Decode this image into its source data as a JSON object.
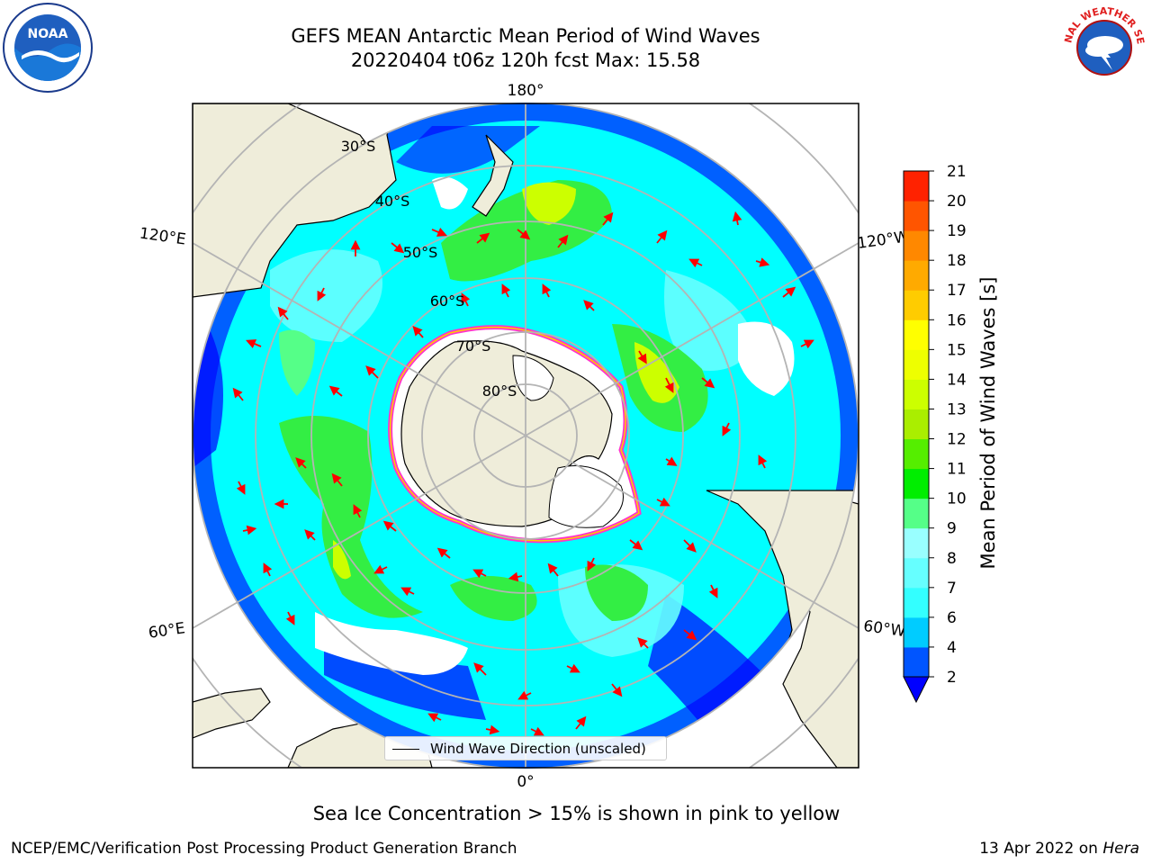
{
  "title": {
    "line1": "GEFS MEAN Antarctic Mean Period of Wind Waves",
    "line2": "20220404 t06z 120h fcst   Max: 15.58"
  },
  "logos": {
    "left": {
      "text": "NOAA",
      "icon": "noaa-logo-icon"
    },
    "right": {
      "text": "NATIONAL WEATHER SERVICE",
      "icon": "nws-logo-icon"
    }
  },
  "map": {
    "projection": "south-polar-stereographic",
    "lon_labels": {
      "top": "180°",
      "bottom": "0°",
      "upper_left": "120°E",
      "upper_right": "120°W",
      "lower_left": "60°E",
      "lower_right": "60°W"
    },
    "lat_labels": [
      "30°S",
      "40°S",
      "50°S",
      "60°S",
      "70°S",
      "80°S"
    ],
    "colors": {
      "land": "#efedda",
      "ocean_base": "#00ffff",
      "ice": "#ffffff",
      "ice_edge": "#ff33cc",
      "arrow": "#ff0000",
      "grid": "#b4b4b4"
    }
  },
  "legend": {
    "label": "Wind Wave Direction (unscaled)"
  },
  "colorbar": {
    "title": "Mean Period of Wind Waves [s]",
    "ticks": [
      "2",
      "4",
      "6",
      "7",
      "8",
      "9",
      "10",
      "11",
      "12",
      "13",
      "14",
      "15",
      "16",
      "17",
      "18",
      "19",
      "20",
      "21"
    ],
    "colors": [
      "#0055ff",
      "#00ccff",
      "#33ffff",
      "#66ffff",
      "#99ffff",
      "#55ff88",
      "#00ee00",
      "#55ee00",
      "#aaee00",
      "#ccff00",
      "#eeff00",
      "#ffff00",
      "#ffcc00",
      "#ffaa00",
      "#ff8800",
      "#ff5500",
      "#ff2200"
    ],
    "under_color": "#0000ff"
  },
  "ice_note": "Sea Ice Concentration > 15% is shown in pink to yellow",
  "footer": {
    "left": "NCEP/EMC/Verification Post Processing Product Generation Branch",
    "right_prefix": "13 Apr 2022 on ",
    "right_machine": "Hera"
  }
}
